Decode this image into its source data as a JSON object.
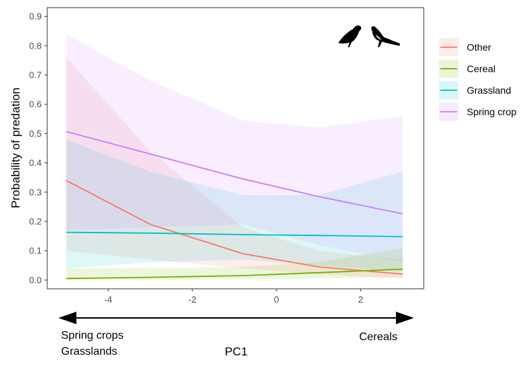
{
  "chart_data": {
    "type": "line",
    "title": "",
    "xlabel": "PC1",
    "ylabel": "Probability of predation",
    "xlim": [
      -5.45,
      3.5
    ],
    "ylim": [
      -0.03,
      0.93
    ],
    "xticks": [
      -4,
      -2,
      0,
      2
    ],
    "yticks": [
      0.0,
      0.1,
      0.2,
      0.3,
      0.4,
      0.5,
      0.6,
      0.7,
      0.8,
      0.9
    ],
    "xtick_labels": [
      "-4",
      "-2",
      "0",
      "2"
    ],
    "ytick_labels": [
      "0.0",
      "0.1",
      "0.2",
      "0.3",
      "0.4",
      "0.5",
      "0.6",
      "0.7",
      "0.8",
      "0.9"
    ],
    "grid": false,
    "legend_position": "right",
    "icons": [
      "crow-icon",
      "magpie-icon"
    ],
    "x": [
      -5,
      -3,
      -0.8,
      1,
      3
    ],
    "series": [
      {
        "name": "Other",
        "color": "#F8766D",
        "values": [
          0.34,
          0.19,
          0.09,
          0.045,
          0.02
        ],
        "lower": [
          0.1,
          0.07,
          0.04,
          0.02,
          0.005
        ],
        "upper": [
          0.76,
          0.44,
          0.18,
          0.1,
          0.07
        ]
      },
      {
        "name": "Cereal",
        "color": "#7CAE00",
        "values": [
          0.005,
          0.009,
          0.015,
          0.025,
          0.037
        ],
        "lower": [
          0.0,
          0.0,
          0.002,
          0.005,
          0.01
        ],
        "upper": [
          0.04,
          0.04,
          0.045,
          0.06,
          0.11
        ]
      },
      {
        "name": "Grassland",
        "color": "#00BFC4",
        "values": [
          0.163,
          0.16,
          0.155,
          0.152,
          0.148
        ],
        "lower": [
          0.04,
          0.06,
          0.07,
          0.05,
          0.03
        ],
        "upper": [
          0.48,
          0.37,
          0.29,
          0.29,
          0.37
        ]
      },
      {
        "name": "Spring crop",
        "color": "#C77CFF",
        "values": [
          0.507,
          0.43,
          0.345,
          0.285,
          0.226
        ],
        "lower": [
          0.17,
          0.18,
          0.19,
          0.12,
          0.06
        ],
        "upper": [
          0.84,
          0.68,
          0.545,
          0.52,
          0.56
        ]
      }
    ],
    "annotations": {
      "left_line1": "Spring crops",
      "left_line2": "Grasslands",
      "right": "Cereals"
    }
  }
}
